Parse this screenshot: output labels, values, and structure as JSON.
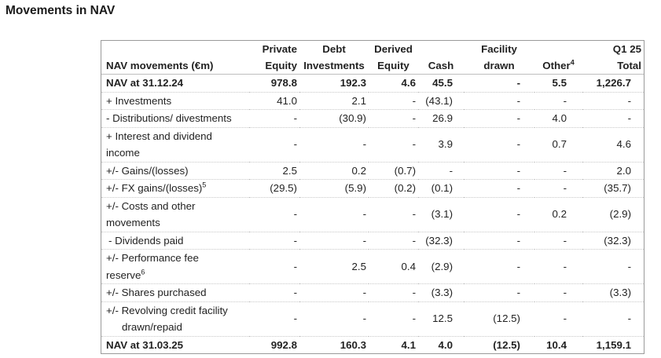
{
  "page": {
    "title": "Movements in NAV"
  },
  "table": {
    "corner_label": "NAV movements (€m)",
    "headers": [
      {
        "top": "Private",
        "bottom": "Equity"
      },
      {
        "top": "Debt",
        "bottom": "Investments"
      },
      {
        "top": "Derived",
        "bottom": "Equity"
      },
      {
        "top": "",
        "bottom": "Cash"
      },
      {
        "top": "Facility",
        "bottom": "drawn"
      },
      {
        "top": "",
        "bottom": "Other",
        "sup": "4"
      },
      {
        "top": "Q1 25",
        "bottom": "Total"
      }
    ],
    "rows": [
      {
        "label": "NAV at 31.12.24",
        "cells": [
          "978.8",
          "192.3",
          "4.6",
          "45.5",
          "-",
          "5.5",
          "1,226.7"
        ]
      },
      {
        "label": "+ Investments",
        "cells": [
          "41.0",
          "2.1",
          "-",
          "(43.1)",
          "-",
          "-",
          "-"
        ]
      },
      {
        "label": "- Distributions/ divestments",
        "cells": [
          "-",
          "(30.9)",
          "-",
          "26.9",
          "-",
          "4.0",
          "-"
        ]
      },
      {
        "label": "+ Interest and dividend",
        "label2": "income",
        "cells": [
          "-",
          "-",
          "-",
          "3.9",
          "-",
          "0.7",
          "4.6"
        ]
      },
      {
        "label": "+/- Gains/(losses)",
        "cells": [
          "2.5",
          "0.2",
          "(0.7)",
          "-",
          "-",
          "-",
          "2.0"
        ]
      },
      {
        "label": "+/- FX gains/(losses)",
        "sup": "5",
        "cells": [
          "(29.5)",
          "(5.9)",
          "(0.2)",
          "(0.1)",
          "-",
          "-",
          "(35.7)"
        ]
      },
      {
        "label": "+/- Costs and other",
        "label2": "movements",
        "cells": [
          "-",
          "-",
          "-",
          "(3.1)",
          "-",
          "0.2",
          "(2.9)"
        ]
      },
      {
        "label": "- Dividends paid",
        "cells": [
          "-",
          "-",
          "-",
          "(32.3)",
          "-",
          "-",
          "(32.3)"
        ]
      },
      {
        "label": "+/- Performance fee",
        "label2": "reserve",
        "sup2": "6",
        "cells": [
          "-",
          "2.5",
          "0.4",
          "(2.9)",
          "-",
          "-",
          "-"
        ]
      },
      {
        "label": "+/- Shares purchased",
        "cells": [
          "-",
          "-",
          "-",
          "(3.3)",
          "-",
          "-",
          "(3.3)"
        ]
      },
      {
        "label": "+/- Revolving credit facility",
        "label2": "drawn/repaid",
        "cells": [
          "-",
          "-",
          "-",
          "12.5",
          "(12.5)",
          "-",
          "-"
        ]
      },
      {
        "label": "NAV at 31.03.25",
        "cells": [
          "992.8",
          "160.3",
          "4.1",
          "4.0",
          "(12.5)",
          "10.4",
          "1,159.1"
        ]
      }
    ]
  }
}
